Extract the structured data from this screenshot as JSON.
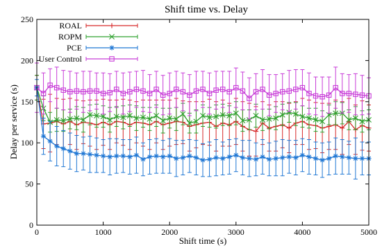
{
  "chart_data": {
    "type": "line",
    "title": "Shift time vs. Delay",
    "xlabel": "Shift time (s)",
    "ylabel": "Delay per service (s)",
    "xlim": [
      0,
      5000
    ],
    "ylim": [
      0,
      250
    ],
    "xticks": [
      0,
      1000,
      2000,
      3000,
      4000,
      5000
    ],
    "yticks": [
      0,
      50,
      100,
      150,
      200,
      250
    ],
    "grid": false,
    "legend_position": "top-left",
    "x": [
      0,
      100,
      200,
      300,
      400,
      500,
      600,
      700,
      800,
      900,
      1000,
      1100,
      1200,
      1300,
      1400,
      1500,
      1600,
      1700,
      1800,
      1900,
      2000,
      2100,
      2200,
      2300,
      2400,
      2500,
      2600,
      2700,
      2800,
      2900,
      3000,
      3100,
      3200,
      3300,
      3400,
      3500,
      3600,
      3700,
      3800,
      3900,
      4000,
      4100,
      4200,
      4300,
      4400,
      4500,
      4600,
      4700,
      4800,
      4900,
      5000
    ],
    "series": [
      {
        "name": "ROAL",
        "color": "#d62728",
        "marker": "plus",
        "values": [
          167,
          123,
          124,
          126,
          123,
          126,
          122,
          125,
          124,
          122,
          125,
          122,
          126,
          125,
          122,
          125,
          124,
          122,
          126,
          122,
          124,
          126,
          125,
          120,
          122,
          124,
          125,
          120,
          124,
          122,
          126,
          120,
          116,
          114,
          124,
          118,
          120,
          122,
          118,
          124,
          126,
          122,
          121,
          118,
          120,
          122,
          118,
          126,
          116,
          121,
          118
        ],
        "err": [
          15,
          30,
          35,
          28,
          30,
          28,
          30,
          26,
          28,
          30,
          28,
          30,
          26,
          28,
          30,
          25,
          28,
          30,
          26,
          30,
          28,
          28,
          26,
          30,
          28,
          26,
          28,
          30,
          28,
          26,
          28,
          30,
          32,
          30,
          26,
          28,
          30,
          28,
          30,
          26,
          28,
          30,
          28,
          30,
          28,
          30,
          32,
          28,
          30,
          30,
          28
        ]
      },
      {
        "name": "ROPM",
        "color": "#2ca02c",
        "marker": "x",
        "values": [
          167,
          142,
          125,
          128,
          127,
          129,
          130,
          128,
          134,
          133,
          132,
          128,
          132,
          131,
          133,
          130,
          131,
          129,
          133,
          127,
          130,
          129,
          135,
          124,
          126,
          133,
          131,
          132,
          134,
          133,
          136,
          127,
          128,
          133,
          128,
          129,
          130,
          134,
          137,
          135,
          132,
          130,
          128,
          126,
          134,
          136,
          136,
          128,
          130,
          126,
          128
        ],
        "err": [
          15,
          15,
          12,
          14,
          13,
          12,
          14,
          15,
          12,
          14,
          13,
          15,
          12,
          14,
          13,
          15,
          12,
          14,
          13,
          15,
          12,
          14,
          13,
          12,
          14,
          13,
          12,
          14,
          13,
          12,
          14,
          13,
          12,
          14,
          13,
          12,
          14,
          13,
          12,
          14,
          13,
          12,
          14,
          13,
          12,
          14,
          13,
          12,
          14,
          13,
          12
        ]
      },
      {
        "name": "PCE",
        "color": "#1f77d4",
        "marker": "star",
        "values": [
          167,
          108,
          102,
          96,
          93,
          90,
          87,
          87,
          86,
          85,
          84,
          83,
          84,
          84,
          83,
          85,
          80,
          83,
          84,
          83,
          84,
          81,
          82,
          84,
          82,
          79,
          80,
          82,
          81,
          83,
          85,
          82,
          81,
          80,
          83,
          80,
          81,
          82,
          83,
          82,
          85,
          83,
          81,
          79,
          81,
          84,
          83,
          82,
          81,
          81,
          81
        ],
        "err": [
          10,
          22,
          24,
          24,
          22,
          22,
          22,
          20,
          22,
          21,
          20,
          22,
          21,
          20,
          21,
          22,
          20,
          21,
          21,
          20,
          21,
          22,
          21,
          20,
          21,
          20,
          21,
          22,
          20,
          21,
          20,
          21,
          22,
          20,
          21,
          20,
          21,
          22,
          20,
          21,
          20,
          21,
          20,
          21,
          20,
          22,
          21,
          20,
          25,
          20,
          20
        ]
      },
      {
        "name": "User Control",
        "color": "#c83cd8",
        "marker": "square",
        "values": [
          167,
          160,
          170,
          167,
          164,
          162,
          163,
          162,
          163,
          163,
          160,
          161,
          165,
          160,
          162,
          165,
          163,
          160,
          165,
          158,
          160,
          165,
          162,
          158,
          163,
          165,
          160,
          164,
          165,
          162,
          167,
          163,
          154,
          162,
          165,
          158,
          160,
          162,
          163,
          165,
          167,
          160,
          157,
          156,
          158,
          167,
          160,
          160,
          159,
          158,
          157
        ],
        "err": [
          30,
          25,
          20,
          25,
          24,
          25,
          22,
          25,
          24,
          22,
          25,
          23,
          22,
          25,
          24,
          22,
          25,
          23,
          22,
          24,
          25,
          22,
          23,
          25,
          24,
          22,
          25,
          23,
          22,
          25,
          24,
          23,
          25,
          22,
          24,
          25,
          23,
          22,
          25,
          24,
          22,
          25,
          23,
          24,
          22,
          25,
          24,
          23,
          25,
          24,
          22
        ]
      }
    ]
  }
}
